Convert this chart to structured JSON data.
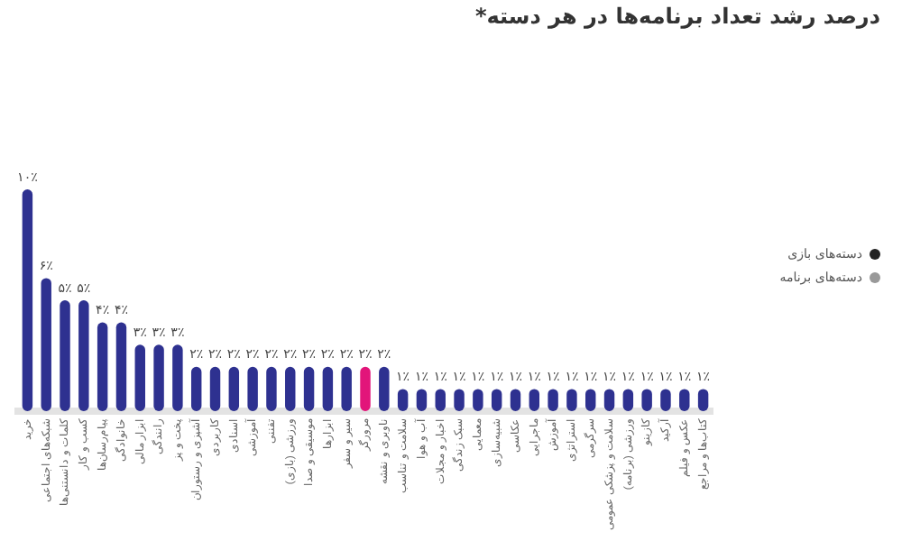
{
  "chart_data": {
    "type": "bar",
    "title": "درصد رشد تعداد برنامه‌ها در هر دسته*",
    "categories": [
      "خرید",
      "شبکه‌های اجتماعی",
      "کلمات و دانستنی‌ها",
      "کسب و کار",
      "پیام‌رسان‌ها",
      "خانوادگی",
      "ابزار مالی",
      "رانندگی",
      "پخت و پز",
      "آشپزی و رستوران",
      "کاربردی",
      "اسنادی",
      "آموزشی",
      "تفننی",
      "ورزشی (بازی)",
      "موسیقی و صدا",
      "ابزارها",
      "سیر و سفر",
      "مرورگر",
      "ناوبری و نقشه",
      "سلامت و تناسب",
      "آب و هوا",
      "اخبار و مجلات",
      "سبک زندگی",
      "معمایی",
      "شبیه‌سازی",
      "عکاسی",
      "ماجرایی",
      "آموزش",
      "استراتژی",
      "سرگرمی",
      "سلامت و پزشکی عمومی",
      "ورزشی (برنامه)",
      "کازینو",
      "آرکید",
      "عکس و فیلم",
      "کتاب‌ها و مراجع"
    ],
    "values": [
      10,
      6,
      5,
      5,
      4,
      4,
      3,
      3,
      3,
      2,
      2,
      2,
      2,
      2,
      2,
      2,
      2,
      2,
      2,
      2,
      1,
      1,
      1,
      1,
      1,
      1,
      1,
      1,
      1,
      1,
      1,
      1,
      1,
      1,
      1,
      1,
      1
    ],
    "value_labels": [
      "۱۰٪",
      "۶٪",
      "۵٪",
      "۵٪",
      "۴٪",
      "۴٪",
      "۳٪",
      "۳٪",
      "۳٪",
      "۲٪",
      "۲٪",
      "۲٪",
      "۲٪",
      "۲٪",
      "۲٪",
      "۲٪",
      "۲٪",
      "۲٪",
      "۲٪",
      "۲٪",
      "۱٪",
      "۱٪",
      "۱٪",
      "۱٪",
      "۱٪",
      "۱٪",
      "۱٪",
      "۱٪",
      "۱٪",
      "۱٪",
      "۱٪",
      "۱٪",
      "۱٪",
      "۱٪",
      "۱٪",
      "۱٪",
      "۱٪"
    ],
    "colors": [
      "#2e3190",
      "#2e3190",
      "#2e3190",
      "#2e3190",
      "#2e3190",
      "#2e3190",
      "#2e3190",
      "#2e3190",
      "#2e3190",
      "#2e3190",
      "#2e3190",
      "#2e3190",
      "#2e3190",
      "#2e3190",
      "#2e3190",
      "#2e3190",
      "#2e3190",
      "#2e3190",
      "#e2157a",
      "#2e3190",
      "#2e3190",
      "#2e3190",
      "#2e3190",
      "#2e3190",
      "#2e3190",
      "#2e3190",
      "#2e3190",
      "#2e3190",
      "#2e3190",
      "#2e3190",
      "#2e3190",
      "#2e3190",
      "#2e3190",
      "#2e3190",
      "#2e3190",
      "#2e3190",
      "#2e3190"
    ],
    "annotations": [
      "دسته‌های بازی",
      "دسته‌های برنامه"
    ],
    "grid": false,
    "legend": false
  }
}
